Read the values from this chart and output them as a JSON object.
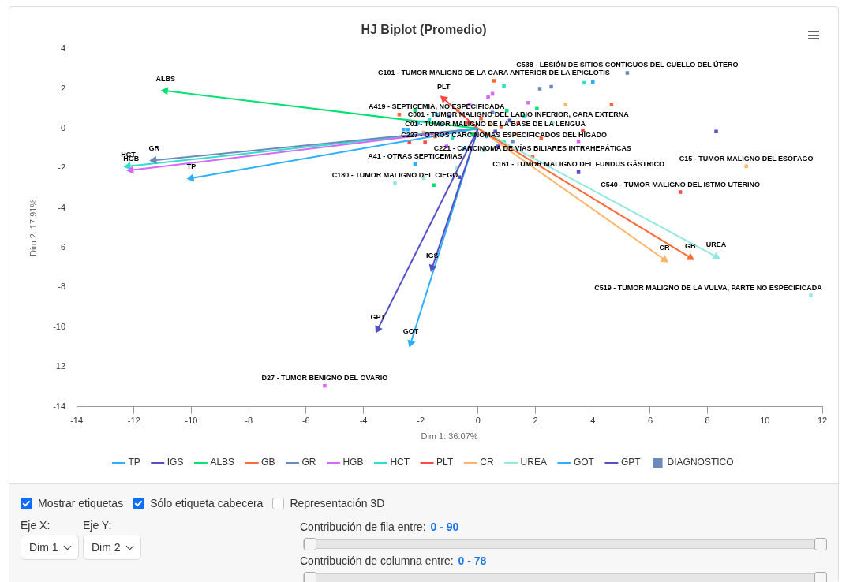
{
  "chart_data": {
    "type": "scatter",
    "title": "HJ Biplot (Promedio)",
    "xlabel": "Dim 1: 36.07%",
    "ylabel": "Dim 2: 17.91%",
    "xlim": [
      -14,
      12
    ],
    "xticks": [
      -14,
      -12,
      -10,
      -8,
      -6,
      -4,
      -2,
      0,
      2,
      4,
      6,
      8,
      10,
      12
    ],
    "ylim": [
      -14,
      4
    ],
    "yticks": [
      -14,
      -12,
      -10,
      -8,
      -6,
      -4,
      -2,
      0,
      2,
      4
    ],
    "grid": false,
    "legend": "bottom",
    "series": [
      {
        "name": "TP",
        "type": "line",
        "marker": "triangle",
        "color": "#2caffe",
        "x": [
          0,
          -10
        ],
        "values": [
          0,
          -2.5
        ]
      },
      {
        "name": "IGS",
        "type": "line",
        "marker": "triangle",
        "color": "#544fc5",
        "x": [
          0,
          -1.6
        ],
        "values": [
          0,
          -7
        ]
      },
      {
        "name": "ALBS",
        "type": "line",
        "marker": "triangle",
        "color": "#00e272",
        "x": [
          0,
          -10.9
        ],
        "values": [
          0,
          1.9
        ]
      },
      {
        "name": "GB",
        "type": "line",
        "marker": "triangle",
        "color": "#fe6a35",
        "x": [
          0,
          7.4
        ],
        "values": [
          0,
          -6.5
        ]
      },
      {
        "name": "GR",
        "type": "line",
        "marker": "triangle",
        "color": "#6b8abc",
        "x": [
          0,
          -11.3
        ],
        "values": [
          0,
          -1.6
        ]
      },
      {
        "name": "HGB",
        "type": "line",
        "marker": "triangle",
        "color": "#d568fb",
        "x": [
          0,
          -12.1
        ],
        "values": [
          0,
          -2.1
        ]
      },
      {
        "name": "HCT",
        "type": "line",
        "marker": "triangle",
        "color": "#2ee0ca",
        "x": [
          0,
          -12.2
        ],
        "values": [
          0,
          -1.9
        ]
      },
      {
        "name": "PLT",
        "type": "line",
        "marker": "triangle",
        "color": "#fa4b42",
        "x": [
          0,
          -1.2
        ],
        "values": [
          0,
          1.5
        ]
      },
      {
        "name": "CR",
        "type": "line",
        "marker": "triangle",
        "color": "#feb56a",
        "x": [
          0,
          6.5
        ],
        "values": [
          0,
          -6.6
        ]
      },
      {
        "name": "UREA",
        "type": "line",
        "marker": "triangle",
        "color": "#91e8e1",
        "x": [
          0,
          8.3
        ],
        "values": [
          0,
          -6.45
        ]
      },
      {
        "name": "GOT",
        "type": "line",
        "marker": "triangle",
        "color": "#2caffe",
        "x": [
          0,
          -2.35
        ],
        "values": [
          0,
          -10.8
        ]
      },
      {
        "name": "GPT",
        "type": "line",
        "marker": "triangle",
        "color": "#544fc5",
        "x": [
          0,
          -3.5
        ],
        "values": [
          0,
          -10.1
        ]
      },
      {
        "name": "DIAGNOSTICO",
        "type": "scatter",
        "marker": "square",
        "x": [
          5.2,
          0.55,
          -1.45,
          1.4,
          0.6,
          0.9,
          1.9,
          -2.2,
          3.5,
          9.35,
          7.05,
          -2.9,
          11.6,
          -5.35,
          2.15,
          2.55,
          0.9,
          3.7,
          4.0,
          0.5,
          0.35,
          1.75,
          3.05,
          4.65,
          2.05,
          8.3,
          3.65,
          3.5,
          1.2,
          -2.75,
          -2.6,
          -2.45,
          -1.85,
          -1.55,
          -1.9,
          -0.75,
          -0.65,
          -2.2,
          -1.7,
          -1.3,
          -1.0,
          -0.7,
          -0.4,
          -0.2,
          0.1,
          0.3,
          0.5,
          0.8,
          1.0,
          1.3,
          1.6,
          -0.9,
          -1.1,
          -0.5,
          0.2,
          -1.9,
          -2.1,
          -0.3,
          0.7,
          2.2,
          2.6,
          -0.1,
          0.4,
          -0.6,
          1.1,
          -1.5,
          -2.4
        ],
        "values": [
          2.8,
          2.4,
          0.7,
          0.3,
          -0.15,
          -0.7,
          -1.4,
          -1.8,
          -2.2,
          -1.9,
          -3.2,
          -2.75,
          -8.4,
          -12.95,
          2.0,
          2.1,
          2.15,
          2.3,
          2.35,
          1.75,
          1.6,
          1.3,
          1.2,
          1.2,
          1.0,
          -0.15,
          -0.1,
          -0.65,
          -0.65,
          0.7,
          -0.05,
          -0.05,
          -0.7,
          -2.85,
          -2.5,
          -2.0,
          -2.45,
          0.9,
          0.45,
          0.2,
          0.6,
          0.9,
          0.3,
          -0.3,
          0.5,
          -0.4,
          0.8,
          0.1,
          0.9,
          -0.3,
          0.6,
          -0.5,
          -0.9,
          -1.0,
          -1.1,
          -0.2,
          0.3,
          1.2,
          -0.9,
          -0.5,
          0.3,
          0.0,
          0.2,
          -0.1,
          0.4,
          -0.4,
          -0.7
        ],
        "colors": [
          "#6b8abc",
          "#fe6a35",
          "#2caffe",
          "#fa4b42",
          "#544fc5",
          "#2ee0ca",
          "#fe6a35",
          "#2caffe",
          "#544fc5",
          "#feb56a",
          "#fa4b42",
          "#91e8e1",
          "#91e8e1",
          "#d568fb",
          "#6b8abc",
          "#6b8abc",
          "#2ee0ca",
          "#2ee0ca",
          "#2caffe",
          "#d568fb",
          "#d568fb",
          "#d568fb",
          "#feb56a",
          "#fe6a35",
          "#00e272",
          "#544fc5",
          "#fa4b42",
          "#d568fb",
          "#6b8abc",
          "#fe6a35",
          "#2caffe",
          "#2caffe",
          "#fa4b42",
          "#00e272",
          "#91e8e1",
          "#91e8e1",
          "#544fc5",
          "#00e272",
          "#2ee0ca",
          "#d568fb",
          "#544fc5",
          "#feb56a",
          "#fa4b42",
          "#00e272",
          "#fe6a35",
          "#2caffe",
          "#6b8abc",
          "#fe6a35",
          "#00e272",
          "#feb56a",
          "#2ee0ca",
          "#2ee0ca",
          "#d568fb",
          "#2caffe",
          "#91e8e1",
          "#feb56a",
          "#2caffe",
          "#d568fb",
          "#544fc5",
          "#fe6a35",
          "#91e8e1",
          "#fa4b42",
          "#feb56a",
          "#00e272",
          "#544fc5",
          "#fe6a35",
          "#fa4b42"
        ]
      }
    ],
    "annotations": [
      {
        "text": "C538 - LESIÓN DE SITIOS CONTIGUOS DEL CUELLO DEL ÚTERO",
        "x": 5.2,
        "y": 2.8
      },
      {
        "text": "C101 - TUMOR MALIGNO DE LA CARA ANTERIOR DE LA EPIGLOTIS",
        "x": 0.55,
        "y": 2.4
      },
      {
        "text": "A419 - SEPTICEMIA, NO ESPECIFICADA",
        "x": -1.45,
        "y": 0.7
      },
      {
        "text": "C001 - TUMOR MALIGNO DEL LABIO INFERIOR, CARA EXTERNA",
        "x": 1.4,
        "y": 0.3
      },
      {
        "text": "C01 - TUMOR MALIGNO DE LA BASE DE LA LENGUA",
        "x": 0.6,
        "y": -0.15
      },
      {
        "text": "C227 - OTROS CARCINOMAS ESPECIFICADOS DEL HÍGADO",
        "x": 0.9,
        "y": -0.7
      },
      {
        "text": "C221 - CARCINOMA DE VÍAS BILIARES INTRAHEPÁTICAS",
        "x": 1.9,
        "y": -1.4
      },
      {
        "text": "A41 - OTRAS SEPTICEMIAS",
        "x": -2.2,
        "y": -1.8
      },
      {
        "text": "C161 - TUMOR MALIGNO DEL FUNDUS GÁSTRICO",
        "x": 3.5,
        "y": -2.2
      },
      {
        "text": "C15 - TUMOR MALIGNO DEL ESÓFAGO",
        "x": 9.35,
        "y": -1.9
      },
      {
        "text": "C540 - TUMOR MALIGNO DEL ISTMO UTERINO",
        "x": 7.05,
        "y": -3.2
      },
      {
        "text": "C180 - TUMOR MALIGNO DEL CIEGO",
        "x": -2.9,
        "y": -2.75
      },
      {
        "text": "C519 - TUMOR MALIGNO DE LA VULVA, PARTE NO ESPECIFICADA",
        "x": 11.6,
        "y": -8.4
      },
      {
        "text": "D27 - TUMOR BENIGNO DEL OVARIO",
        "x": -5.35,
        "y": -12.95
      },
      "Mostrar etiquetas",
      "Sólo etiqueta cabecera",
      "Representación 3D",
      "Eje X:",
      "Eje Y:",
      "Dim 1",
      "Dim 2",
      "Contribución de fila entre:",
      "0 - 90",
      "Contribución de columna entre:",
      "0 - 78"
    ]
  }
}
